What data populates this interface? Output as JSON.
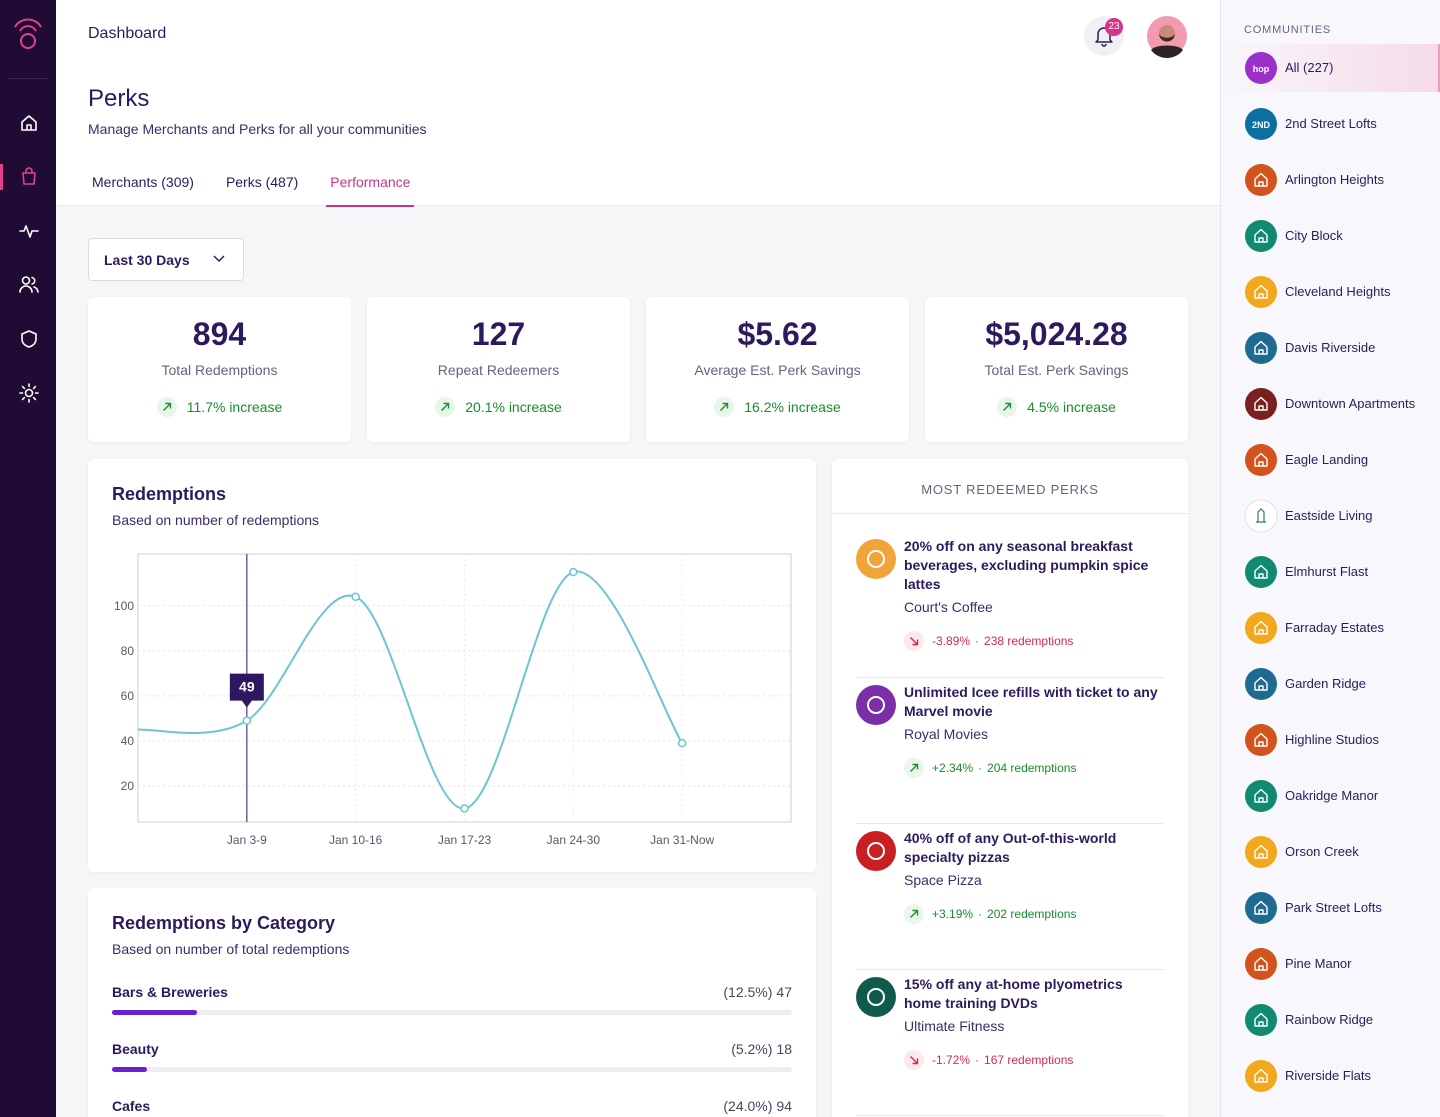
{
  "header": {
    "title": "Dashboard",
    "notification_count": 23
  },
  "page": {
    "title": "Perks",
    "subtitle": "Manage Merchants and Perks for all your communities"
  },
  "tabs": [
    {
      "label": "Merchants (309)"
    },
    {
      "label": "Perks (487)"
    },
    {
      "label": "Performance",
      "active": true
    }
  ],
  "filter": "Last 30 Days",
  "stats": [
    {
      "value": 894,
      "label": "Total Redemptions",
      "change": "11.7% increase"
    },
    {
      "value": 127,
      "label": "Repeat Redeemers",
      "change": "20.1% increase"
    },
    {
      "value": "$5.62",
      "label": "Average Est. Perk Savings",
      "change": "16.2% increase"
    },
    {
      "value": "$5,024.28",
      "label": "Total Est. Perk Savings",
      "change": "4.5% increase"
    }
  ],
  "redemptions": {
    "title": "Redemptions",
    "subtitle": "Based on number of redemptions",
    "chart": {
      "type": "line",
      "categories": [
        null,
        "Jan 3-9",
        "Jan 10-16",
        "Jan 17-23",
        "Jan 24-30",
        "Jan 31-Now",
        null
      ],
      "values": [
        45,
        49,
        104,
        10,
        115,
        39,
        null
      ],
      "color": "#6cc5d3",
      "ylim": [
        4,
        123
      ],
      "yticks": [
        20,
        40,
        60,
        80,
        100
      ],
      "grid": true,
      "highlight_index": 1
    }
  },
  "categories": {
    "title": "Redemptions by Category",
    "subtitle": "Based on number of total redemptions",
    "items": [
      {
        "name": "Bars & Breweries",
        "percent": 12.5,
        "percent_label": "(12.5%)",
        "count": 47
      },
      {
        "name": "Beauty",
        "percent": 5.2,
        "percent_label": "(5.2%)",
        "count": 18
      },
      {
        "name": "Cafes",
        "percent": 24.0,
        "percent_label": "(24.0%)",
        "count": 94
      }
    ]
  },
  "most_redeemed": {
    "title": "MOST REDEEMED PERKS",
    "items": [
      {
        "title": "20% off on any seasonal breakfast beverages, excluding pumpkin spice lattes",
        "merchant": "Court's Coffee",
        "change": "-3.89%",
        "redemptions": "238 redemptions",
        "trend": "down",
        "color": "#f0a43a"
      },
      {
        "title": "Unlimited Icee refills with ticket to any Marvel movie",
        "merchant": "Royal Movies",
        "change": "+2.34%",
        "redemptions": "204 redemptions",
        "trend": "up",
        "color": "#7a2fa8"
      },
      {
        "title": "40% off of any Out-of-this-world specialty pizzas",
        "merchant": "Space Pizza",
        "change": "+3.19%",
        "redemptions": "202 redemptions",
        "trend": "up",
        "color": "#c81f22"
      },
      {
        "title": "15% off any at-home plyometrics home training DVDs",
        "merchant": "Ultimate Fitness",
        "change": "-1.72%",
        "redemptions": "167 redemptions",
        "trend": "down",
        "color": "#0f5a4a"
      }
    ]
  },
  "communities": {
    "title": "COMMUNITIES",
    "items": [
      {
        "name": "All (227)",
        "color": "#9b2fc9",
        "logo": "hop",
        "active": true
      },
      {
        "name": "2nd Street Lofts",
        "color": "#0d6ea0",
        "logo": "2ND"
      },
      {
        "name": "Arlington Heights",
        "color": "#d2541c"
      },
      {
        "name": "City Block",
        "color": "#108a70"
      },
      {
        "name": "Cleveland Heights",
        "color": "#f2a81d"
      },
      {
        "name": "Davis Riverside",
        "color": "#1f6b8f"
      },
      {
        "name": "Downtown Apartments",
        "color": "#7a2020"
      },
      {
        "name": "Eagle Landing",
        "color": "#d2541c"
      },
      {
        "name": "Eastside Living",
        "color": "#ffffff"
      },
      {
        "name": "Elmhurst Flast",
        "color": "#108a70"
      },
      {
        "name": "Farraday Estates",
        "color": "#f2a81d"
      },
      {
        "name": "Garden Ridge",
        "color": "#1f6b8f"
      },
      {
        "name": "Highline Studios",
        "color": "#d2541c"
      },
      {
        "name": "Oakridge Manor",
        "color": "#108a70"
      },
      {
        "name": "Orson Creek",
        "color": "#f2a81d"
      },
      {
        "name": "Park Street Lofts",
        "color": "#1f6b8f"
      },
      {
        "name": "Pine Manor",
        "color": "#d2541c"
      },
      {
        "name": "Rainbow Ridge",
        "color": "#108a70"
      },
      {
        "name": "Riverside Flats",
        "color": "#f2a81d"
      }
    ]
  }
}
